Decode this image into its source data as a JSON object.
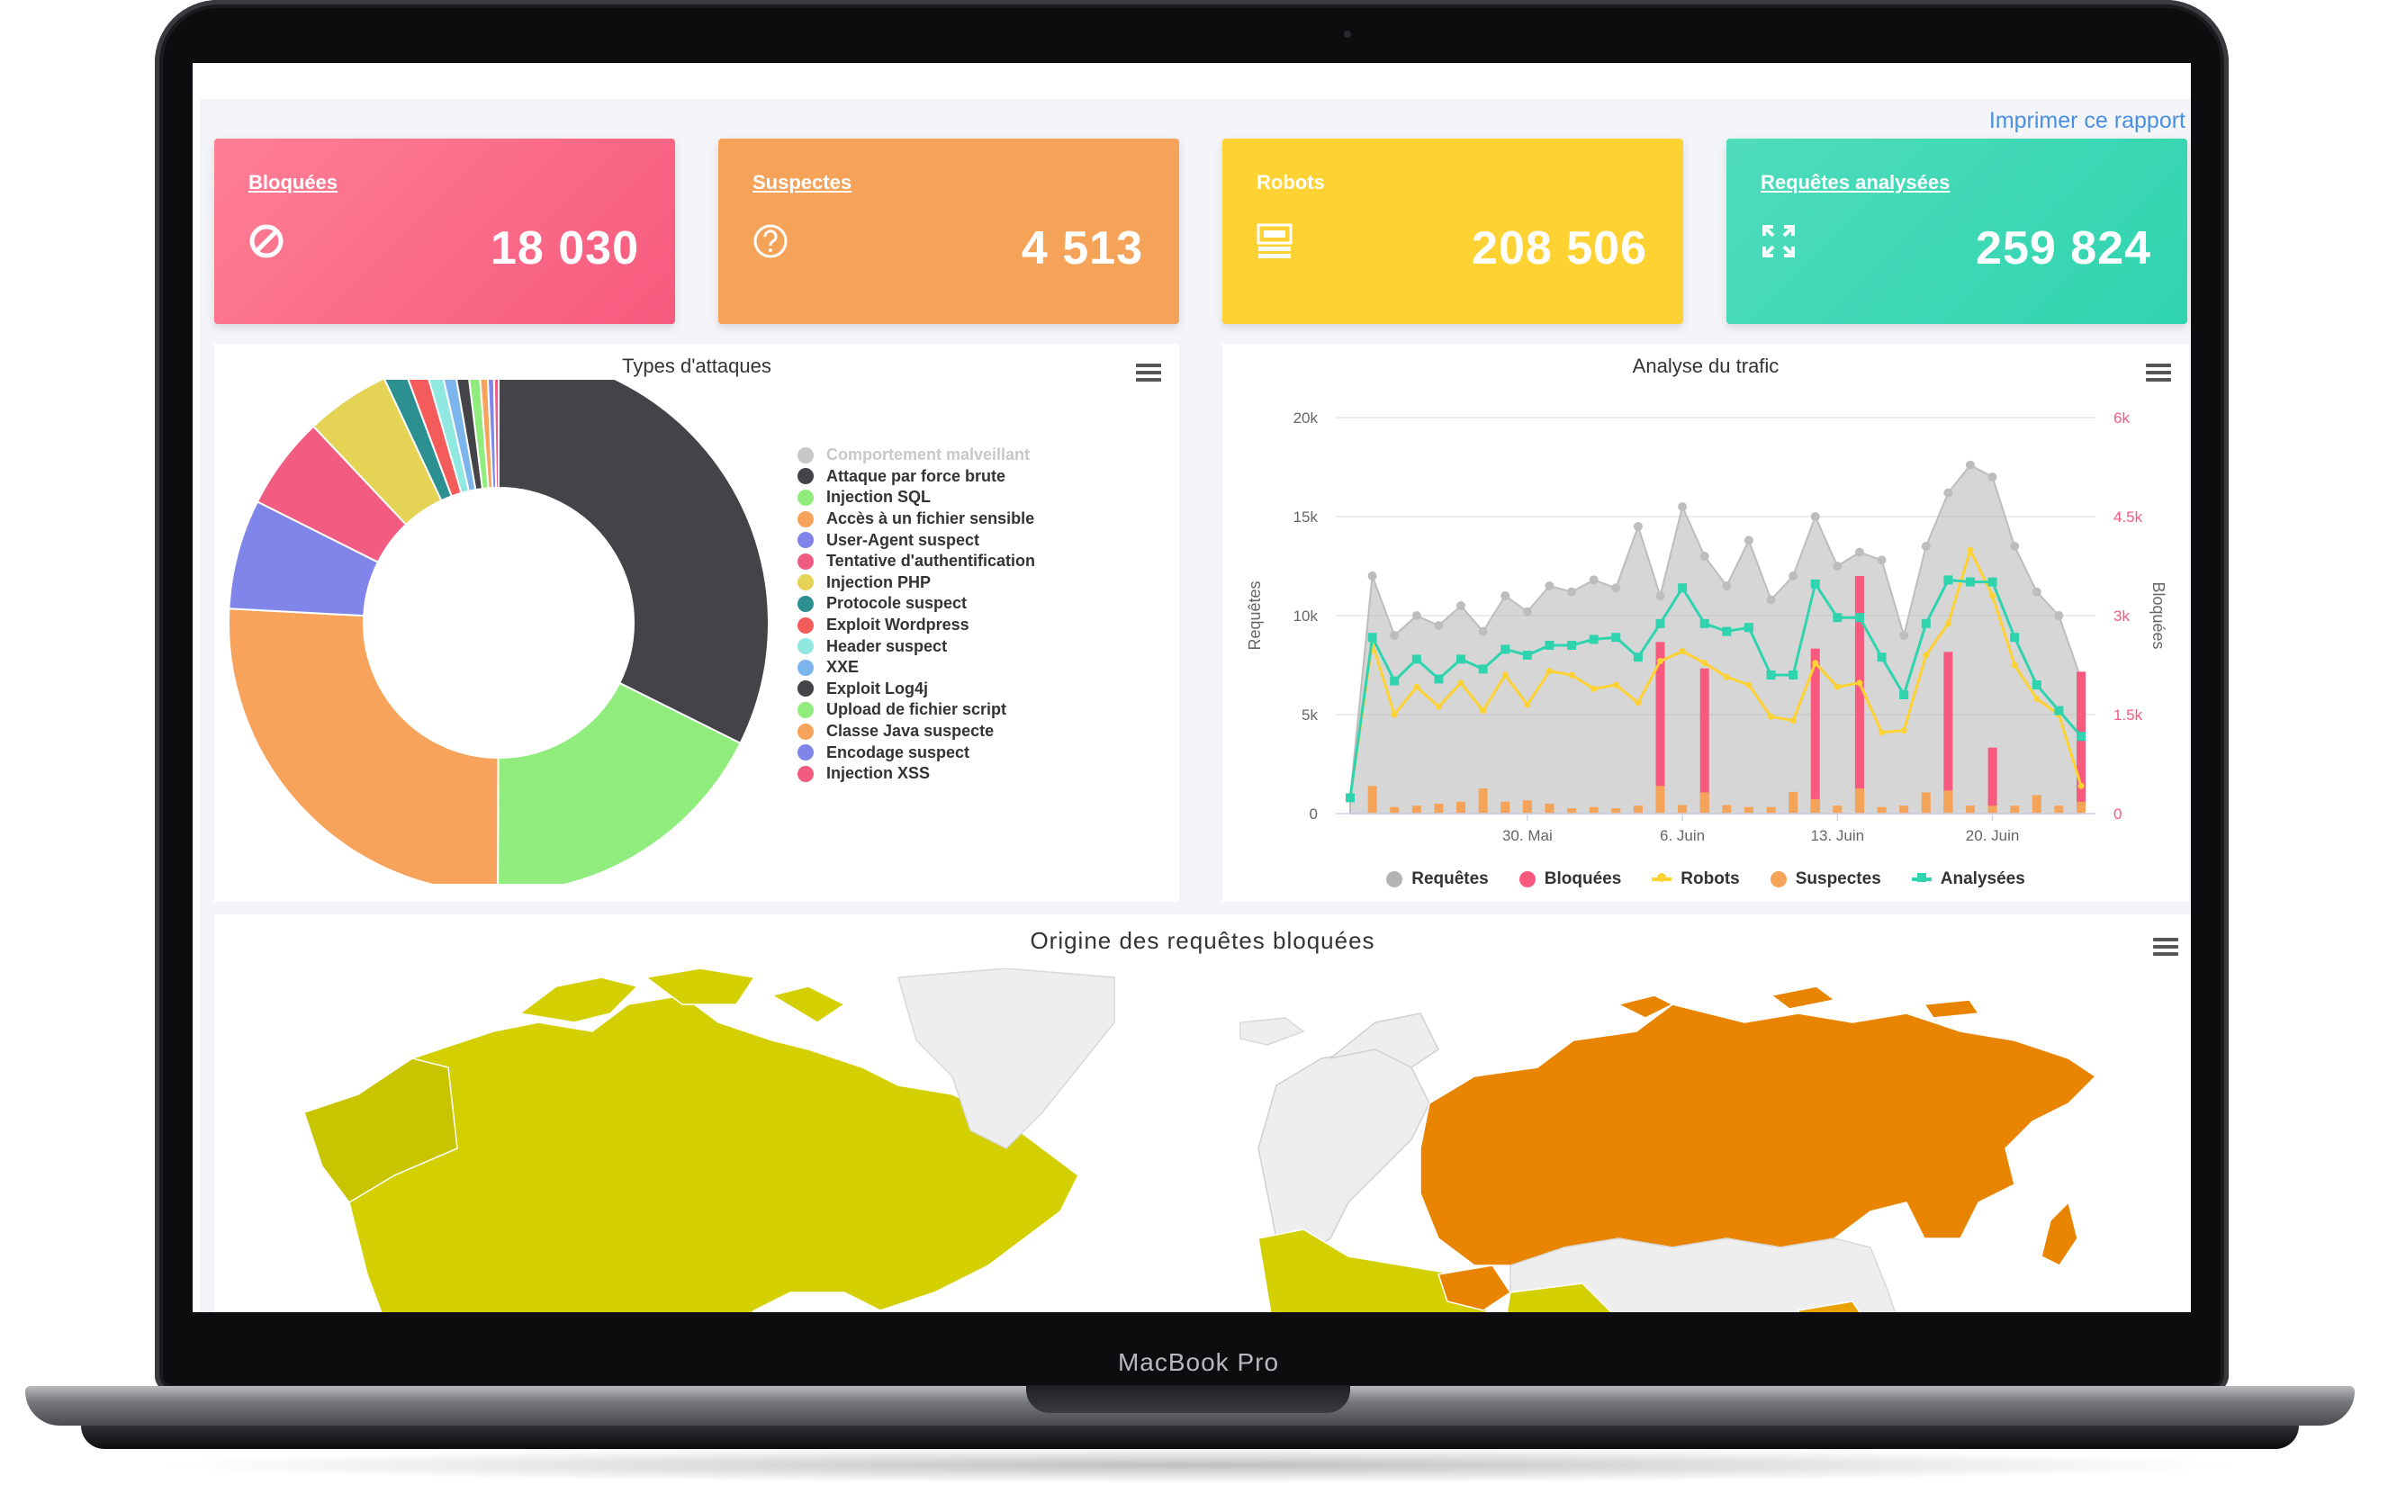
{
  "device": {
    "brand_label": "MacBook Pro"
  },
  "header": {
    "print_link": "Imprimer ce rapport"
  },
  "colors": {
    "blocked": "#f75a7e",
    "suspect": "#f6a35a",
    "robots": "#fdd232",
    "analyzed": "#2fd4ae",
    "link": "#4a90e2"
  },
  "kpis": [
    {
      "title": "Bloquées",
      "value": "18 030",
      "icon": "block-icon"
    },
    {
      "title": "Suspectes",
      "value": "4 513",
      "icon": "question-circle-icon"
    },
    {
      "title": "Robots",
      "value": "208 506",
      "icon": "robot-server-icon"
    },
    {
      "title": "Requêtes analysées",
      "value": "259 824",
      "icon": "expand-icon"
    }
  ],
  "attacks": {
    "title": "Types d'attaques",
    "legend": [
      {
        "label": "Comportement malveillant",
        "color": "#c8c8c8",
        "hidden": true
      },
      {
        "label": "Attaque par force brute",
        "color": "#434348"
      },
      {
        "label": "Injection SQL",
        "color": "#90ed7d"
      },
      {
        "label": "Accès à un fichier sensible",
        "color": "#f7a35c"
      },
      {
        "label": "User-Agent suspect",
        "color": "#8085e9"
      },
      {
        "label": "Tentative d'authentification",
        "color": "#f15c80"
      },
      {
        "label": "Injection PHP",
        "color": "#e4d354"
      },
      {
        "label": "Protocole suspect",
        "color": "#2b908f"
      },
      {
        "label": "Exploit Wordpress",
        "color": "#f45b5b"
      },
      {
        "label": "Header suspect",
        "color": "#91e8e1"
      },
      {
        "label": "XXE",
        "color": "#7cb5ec"
      },
      {
        "label": "Exploit Log4j",
        "color": "#434348"
      },
      {
        "label": "Upload de fichier script",
        "color": "#90ed7d"
      },
      {
        "label": "Classe Java suspecte",
        "color": "#f7a35c"
      },
      {
        "label": "Encodage suspect",
        "color": "#8085e9"
      },
      {
        "label": "Injection XSS",
        "color": "#f15c80"
      }
    ]
  },
  "chart_data": [
    {
      "type": "pie",
      "title": "Types d'attaques",
      "categories": [
        "Attaque par force brute",
        "Injection SQL",
        "Accès à un fichier sensible",
        "User-Agent suspect",
        "Tentative d'authentification",
        "Injection PHP",
        "Protocole suspect",
        "Exploit Wordpress",
        "Header suspect",
        "XXE",
        "Exploit Log4j",
        "Upload de fichier script",
        "Classe Java suspecte",
        "Encodage suspect",
        "Injection XSS"
      ],
      "values": [
        32.0,
        17.5,
        25.5,
        6.5,
        5.5,
        5.0,
        1.3,
        1.2,
        0.9,
        0.8,
        0.8,
        0.7,
        0.5,
        0.4,
        0.3
      ],
      "colors": [
        "#434348",
        "#90ed7d",
        "#f7a35c",
        "#8085e9",
        "#f15c80",
        "#e4d354",
        "#2b908f",
        "#f45b5b",
        "#91e8e1",
        "#7cb5ec",
        "#434348",
        "#90ed7d",
        "#f7a35c",
        "#8085e9",
        "#f15c80"
      ]
    },
    {
      "type": "line",
      "title": "Analyse du trafic",
      "ylabel": "Requêtes",
      "y2label": "Bloquées",
      "ylim": [
        0,
        20000
      ],
      "y2lim": [
        0,
        6000
      ],
      "yticks": [
        "0",
        "5k",
        "10k",
        "15k",
        "20k"
      ],
      "y2ticks": [
        "0",
        "1.5k",
        "3k",
        "4.5k",
        "6k"
      ],
      "xticks": [
        {
          "label": "30. Mai",
          "index": 8
        },
        {
          "label": "6. Juin",
          "index": 15
        },
        {
          "label": "13. Juin",
          "index": 22
        },
        {
          "label": "20. Juin",
          "index": 29
        }
      ],
      "series": [
        {
          "name": "Requêtes",
          "axis": "left",
          "kind": "area",
          "color": "#b4b4b4",
          "values": [
            800,
            12000,
            9000,
            10000,
            9500,
            10500,
            9200,
            11000,
            10200,
            11500,
            11200,
            11800,
            11400,
            14500,
            11000,
            15500,
            13000,
            11500,
            13800,
            10800,
            12000,
            15000,
            12500,
            13200,
            12800,
            9000,
            13500,
            16200,
            17600,
            17000,
            13500,
            11200,
            10000,
            6800
          ]
        },
        {
          "name": "Bloquées",
          "axis": "right",
          "kind": "column",
          "color": "#f75a7e",
          "values": [
            0,
            0,
            0,
            0,
            0,
            0,
            0,
            0,
            0,
            0,
            0,
            0,
            0,
            0,
            2600,
            0,
            2200,
            0,
            0,
            0,
            0,
            2500,
            0,
            3600,
            0,
            0,
            0,
            2450,
            0,
            1000,
            0,
            0,
            0,
            2150
          ]
        },
        {
          "name": "Robots",
          "axis": "left",
          "kind": "line",
          "color": "#fdd232",
          "values": [
            800,
            8600,
            5000,
            6400,
            5400,
            6600,
            5200,
            7000,
            5500,
            7200,
            7000,
            6300,
            6500,
            5600,
            7700,
            8200,
            7600,
            6900,
            6500,
            4900,
            4700,
            7600,
            6400,
            6600,
            4100,
            4200,
            8000,
            9600,
            13300,
            11000,
            7500,
            5800,
            5000,
            1400
          ]
        },
        {
          "name": "Suspectes",
          "axis": "right",
          "kind": "column",
          "color": "#f6a35a",
          "values": [
            0,
            420,
            100,
            120,
            150,
            180,
            380,
            180,
            200,
            150,
            80,
            100,
            80,
            120,
            420,
            130,
            320,
            130,
            100,
            100,
            330,
            220,
            120,
            380,
            100,
            120,
            320,
            350,
            120,
            120,
            120,
            280,
            120,
            180
          ]
        },
        {
          "name": "Analysées",
          "axis": "left",
          "kind": "line",
          "color": "#2fd4ae",
          "values": [
            800,
            8900,
            6700,
            7800,
            6800,
            7800,
            7300,
            8300,
            8000,
            8500,
            8500,
            8800,
            8900,
            7900,
            9600,
            11400,
            9600,
            9200,
            9400,
            7000,
            7000,
            11600,
            9900,
            9900,
            7900,
            6000,
            9600,
            11800,
            11700,
            11700,
            8900,
            6500,
            5200,
            3900
          ]
        }
      ]
    }
  ],
  "traffic": {
    "title": "Analyse du trafic",
    "ylabel_left": "Requêtes",
    "ylabel_right": "Bloquées",
    "legend": [
      {
        "label": "Requêtes",
        "color": "#b4b4b4",
        "marker": "dot"
      },
      {
        "label": "Bloquées",
        "color": "#f75a7e",
        "marker": "dot"
      },
      {
        "label": "Robots",
        "color": "#fdd232",
        "marker": "line"
      },
      {
        "label": "Suspectes",
        "color": "#f6a35a",
        "marker": "dot"
      },
      {
        "label": "Analysées",
        "color": "#2fd4ae",
        "marker": "line-square"
      }
    ]
  },
  "map": {
    "title": "Origine des requêtes bloquées"
  }
}
